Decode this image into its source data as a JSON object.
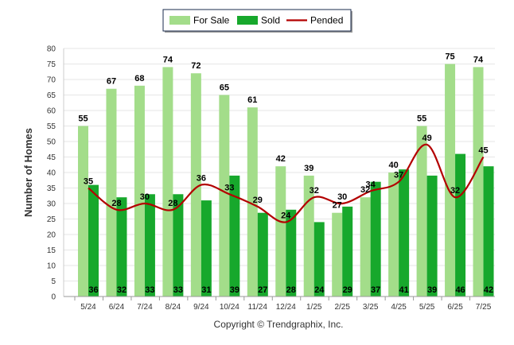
{
  "chart_data": {
    "type": "bar",
    "categories": [
      "5/24",
      "6/24",
      "7/24",
      "8/24",
      "9/24",
      "10/24",
      "11/24",
      "12/24",
      "1/25",
      "2/25",
      "3/25",
      "4/25",
      "5/25",
      "6/25",
      "7/25"
    ],
    "series": [
      {
        "name": "For Sale",
        "type": "bar",
        "color": "#a3dd8a",
        "values": [
          55,
          67,
          68,
          74,
          72,
          65,
          61,
          42,
          39,
          27,
          32,
          40,
          55,
          75,
          74
        ]
      },
      {
        "name": "Sold",
        "type": "bar",
        "color": "#17a82c",
        "values": [
          36,
          32,
          33,
          33,
          31,
          39,
          27,
          28,
          24,
          29,
          37,
          41,
          39,
          46,
          42
        ]
      },
      {
        "name": "Pended",
        "type": "line",
        "color": "#b30000",
        "values": [
          35,
          28,
          30,
          28,
          36,
          33,
          29,
          24,
          32,
          30,
          34,
          37,
          49,
          32,
          45
        ]
      }
    ],
    "ylabel": "Number of Homes",
    "ylim": [
      0,
      80
    ],
    "yticks": [
      0,
      5,
      10,
      15,
      20,
      25,
      30,
      35,
      40,
      45,
      50,
      55,
      60,
      65,
      70,
      75,
      80
    ],
    "grid": true,
    "legend_position": "top-center",
    "copyright": "Copyright © Trendgraphix, Inc."
  }
}
